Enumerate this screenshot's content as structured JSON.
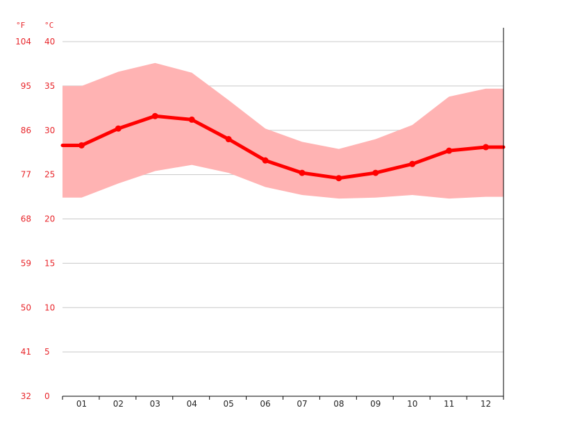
{
  "chart_data": {
    "type": "line",
    "y_unit_left": "°F",
    "y_unit_right": "°C",
    "yticks_c": [
      "40",
      "35",
      "30",
      "25",
      "20",
      "15",
      "10",
      "5",
      "0"
    ],
    "yticks_f": [
      "104",
      "95",
      "86",
      "77",
      "68",
      "59",
      "50",
      "41",
      "32"
    ],
    "ylim": [
      0,
      40
    ],
    "categories": [
      "01",
      "02",
      "03",
      "04",
      "05",
      "06",
      "07",
      "08",
      "09",
      "10",
      "11",
      "12"
    ],
    "series": [
      {
        "role": "mean",
        "values": [
          28.3,
          30.2,
          31.6,
          31.2,
          29.0,
          26.6,
          25.2,
          24.6,
          25.2,
          26.2,
          27.7,
          28.1
        ]
      },
      {
        "role": "max",
        "values": [
          35.0,
          36.6,
          37.6,
          36.5,
          33.4,
          30.2,
          28.7,
          27.9,
          29.0,
          30.6,
          33.8,
          34.7
        ]
      },
      {
        "role": "min",
        "values": [
          22.4,
          24.0,
          25.4,
          26.1,
          25.2,
          23.6,
          22.7,
          22.3,
          22.4,
          22.7,
          22.3,
          22.5
        ]
      }
    ],
    "colors": {
      "line": "#ff0000",
      "band": "#ffb3b3",
      "axis_labels": "#e8262b",
      "grid": "#c8c8c8"
    },
    "grid": true
  }
}
